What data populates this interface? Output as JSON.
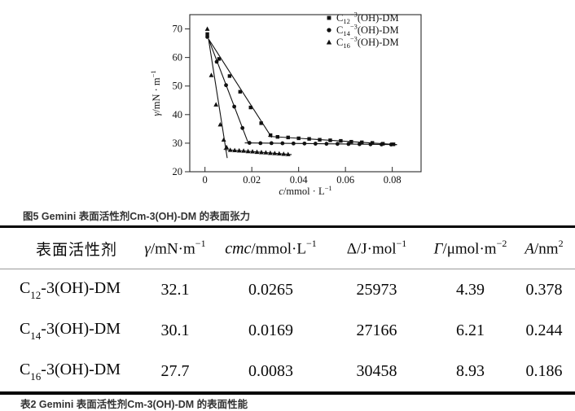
{
  "figure_caption": "图5 Gemini 表面活性剂Cm-3(OH)-DM 的表面张力",
  "table_caption": "表2 Gemini 表面活性剂Cm-3(OH)-DM 的表面性能",
  "chart_data": {
    "type": "scatter",
    "xlabel": {
      "sym": "c",
      "unit": "/mmol · L",
      "sup": "−1"
    },
    "ylabel": {
      "sym": "γ",
      "unit": "/mN · m",
      "sup": "−1"
    },
    "xlim": [
      -0.0065,
      0.0923
    ],
    "ylim": [
      20,
      75
    ],
    "xticks": [
      {
        "v": 0,
        "t": "0"
      },
      {
        "v": 0.02,
        "t": "0.02"
      },
      {
        "v": 0.04,
        "t": "0.04"
      },
      {
        "v": 0.06,
        "t": "0.06"
      },
      {
        "v": 0.08,
        "t": "0.08"
      }
    ],
    "yticks": [
      {
        "v": 20,
        "t": "20"
      },
      {
        "v": 30,
        "t": "30"
      },
      {
        "v": 40,
        "t": "40"
      },
      {
        "v": 50,
        "t": "50"
      },
      {
        "v": 60,
        "t": "60"
      },
      {
        "v": 70,
        "t": "70"
      }
    ],
    "grid": false,
    "legend_position": "top-right",
    "series": [
      {
        "marker": "square",
        "name": {
          "pre": "C",
          "sub": "12",
          "sup": "−3",
          "rest": "(OH)-DM"
        },
        "cmc": 0.0265,
        "points": [
          [
            0.001,
            68.2
          ],
          [
            0.006,
            59.5
          ],
          [
            0.0105,
            53.5
          ],
          [
            0.015,
            48.0
          ],
          [
            0.0195,
            42.5
          ],
          [
            0.024,
            37.0
          ],
          [
            0.028,
            32.8
          ],
          [
            0.031,
            32.2
          ],
          [
            0.0355,
            32.0
          ],
          [
            0.04,
            31.7
          ],
          [
            0.0445,
            31.5
          ],
          [
            0.049,
            31.2
          ],
          [
            0.0535,
            31.0
          ],
          [
            0.058,
            30.8
          ],
          [
            0.0625,
            30.5
          ],
          [
            0.067,
            30.3
          ],
          [
            0.0715,
            30.1
          ],
          [
            0.076,
            29.8
          ],
          [
            0.0805,
            29.6
          ]
        ],
        "fit_lines": [
          [
            [
              0.0015,
              66.5
            ],
            [
              0.0285,
              32.0
            ]
          ],
          [
            [
              0.027,
              32.4
            ],
            [
              0.082,
              29.5
            ]
          ]
        ]
      },
      {
        "marker": "circle",
        "name": {
          "pre": "C",
          "sub": "14",
          "sup": "−3",
          "rest": "(OH)-DM"
        },
        "cmc": 0.0169,
        "points": [
          [
            0.001,
            67.2
          ],
          [
            0.005,
            58.5
          ],
          [
            0.009,
            50.3
          ],
          [
            0.0125,
            42.8
          ],
          [
            0.016,
            35.3
          ],
          [
            0.019,
            30.1
          ],
          [
            0.0237,
            30.0
          ],
          [
            0.0284,
            30.0
          ],
          [
            0.0331,
            29.95
          ],
          [
            0.0378,
            29.9
          ],
          [
            0.0425,
            29.87
          ],
          [
            0.0472,
            29.82
          ],
          [
            0.0519,
            29.78
          ],
          [
            0.0566,
            29.74
          ],
          [
            0.0613,
            29.7
          ],
          [
            0.066,
            29.65
          ],
          [
            0.0707,
            29.6
          ],
          [
            0.0754,
            29.56
          ],
          [
            0.0795,
            29.53
          ]
        ],
        "fit_lines": [
          [
            [
              0.0015,
              66.5
            ],
            [
              0.0185,
              30.0
            ]
          ],
          [
            [
              0.017,
              30.1
            ],
            [
              0.082,
              29.5
            ]
          ]
        ]
      },
      {
        "marker": "triangle",
        "name": {
          "pre": "C",
          "sub": "16",
          "sup": "−3",
          "rest": "(OH)-DM"
        },
        "cmc": 0.0083,
        "points": [
          [
            0.001,
            70.0
          ],
          [
            0.0027,
            53.8
          ],
          [
            0.0047,
            43.5
          ],
          [
            0.0065,
            36.5
          ],
          [
            0.008,
            31.2
          ],
          [
            0.0092,
            28.6
          ],
          [
            0.0108,
            27.6
          ],
          [
            0.0127,
            27.5
          ],
          [
            0.0146,
            27.4
          ],
          [
            0.0165,
            27.3
          ],
          [
            0.0184,
            27.15
          ],
          [
            0.0203,
            27.05
          ],
          [
            0.0222,
            26.9
          ],
          [
            0.0241,
            26.8
          ],
          [
            0.026,
            26.7
          ],
          [
            0.0279,
            26.55
          ],
          [
            0.0298,
            26.45
          ],
          [
            0.0317,
            26.35
          ],
          [
            0.0336,
            26.2
          ],
          [
            0.0355,
            26.1
          ]
        ],
        "fit_lines": [
          [
            [
              0.0015,
              66.5
            ],
            [
              0.0095,
              24.8
            ]
          ],
          [
            [
              0.008,
              27.8
            ],
            [
              0.037,
              26.0
            ]
          ]
        ]
      }
    ]
  },
  "table": {
    "headers": {
      "surfactant": "表面活性剂",
      "gamma": {
        "sym": "γ",
        "unit": "/mN·m",
        "sup": "−1"
      },
      "cmc": {
        "sym": "cmc",
        "unit": "/mmol·L",
        "sup": "−1"
      },
      "delta": {
        "sym": "Δ",
        "unit": "/J·mol",
        "sup": "−1"
      },
      "Gamma": {
        "sym": "Γ",
        "unit": "/μmol·m",
        "sup": "−2"
      },
      "area": {
        "sym": "A",
        "unit": "/nm",
        "sup": "2"
      }
    },
    "rows": [
      {
        "pre": "C",
        "sub": "12",
        "rest": "-3(OH)-DM",
        "gamma": "32.1",
        "cmc": "0.0265",
        "delta": "25973",
        "Gamma": "4.39",
        "area": "0.378"
      },
      {
        "pre": "C",
        "sub": "14",
        "rest": "-3(OH)-DM",
        "gamma": "30.1",
        "cmc": "0.0169",
        "delta": "27166",
        "Gamma": "6.21",
        "area": "0.244"
      },
      {
        "pre": "C",
        "sub": "16",
        "rest": "-3(OH)-DM",
        "gamma": "27.7",
        "cmc": "0.0083",
        "delta": "30458",
        "Gamma": "8.93",
        "area": "0.186"
      }
    ]
  },
  "colors": {
    "ink": "#111111",
    "axis": "#2b2b2b",
    "rule_thick": "#000000",
    "rule_thin": "#999999"
  }
}
